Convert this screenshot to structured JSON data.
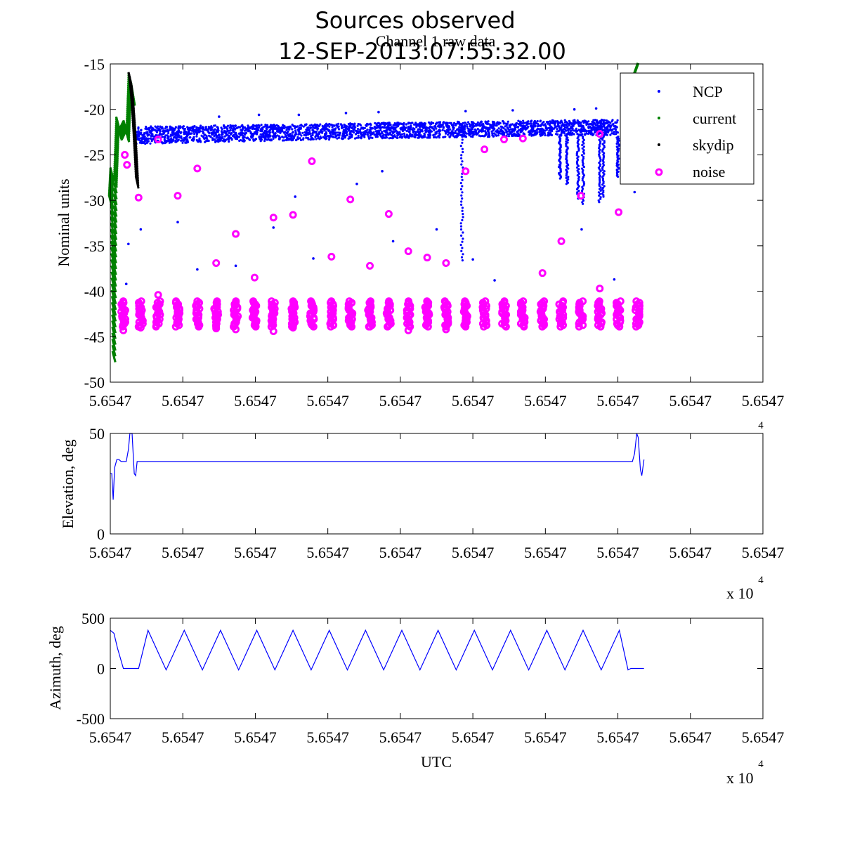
{
  "figure": {
    "title_line1": "Sources observed",
    "title_line2": "12-SEP-2013:07:55:32.00",
    "x_exponent": "x 10",
    "x_exponent_power": "4"
  },
  "chart_data": [
    {
      "type": "scatter",
      "title": "Channel 1 raw data",
      "xlabel": "",
      "ylabel": "Nominal units",
      "xlim": [
        0,
        9
      ],
      "ylim": [
        -50,
        -15
      ],
      "yticks": [
        -50,
        -45,
        -40,
        -35,
        -30,
        -25,
        -20,
        -15
      ],
      "xtick_labels": [
        "5.6547",
        "5.6547",
        "5.6547",
        "5.6547",
        "5.6547",
        "5.6547",
        "5.6547",
        "5.6547",
        "5.6547",
        "5.6547"
      ],
      "ytick_labels": [
        "-50",
        "-45",
        "-40",
        "-35",
        "-30",
        "-25",
        "-20",
        "-15"
      ],
      "legend": {
        "location": "top-right",
        "entries": [
          {
            "label": "NCP",
            "color": "#0000ff",
            "marker": "dot"
          },
          {
            "label": "current",
            "color": "#008000",
            "marker": "dot"
          },
          {
            "label": "skydip",
            "color": "#000000",
            "marker": "dot"
          },
          {
            "label": "noise",
            "color": "#ff00ff",
            "marker": "circle"
          }
        ]
      },
      "series": [
        {
          "name": "NCP",
          "color": "#0000ff",
          "x_range": [
            0.33,
            7.0
          ],
          "band_low": [
            -23.8,
            -23.5,
            -23.2,
            -23.0,
            -22.8
          ],
          "band_high": [
            -21.9,
            -21.7,
            -21.5,
            -21.3,
            -21.1
          ],
          "outliers": [
            {
              "x": 0.25,
              "y": -34.8
            },
            {
              "x": 0.22,
              "y": -39.2
            },
            {
              "x": 0.42,
              "y": -33.2
            },
            {
              "x": 0.93,
              "y": -32.4
            },
            {
              "x": 1.2,
              "y": -37.6
            },
            {
              "x": 1.73,
              "y": -37.2
            },
            {
              "x": 2.25,
              "y": -33.0
            },
            {
              "x": 2.55,
              "y": -29.6
            },
            {
              "x": 2.8,
              "y": -36.4
            },
            {
              "x": 3.4,
              "y": -28.2
            },
            {
              "x": 3.75,
              "y": -26.8
            },
            {
              "x": 3.9,
              "y": -34.5
            },
            {
              "x": 4.5,
              "y": -33.2
            },
            {
              "x": 5.0,
              "y": -36.5
            },
            {
              "x": 5.3,
              "y": -38.8
            },
            {
              "x": 6.5,
              "y": -33.2
            },
            {
              "x": 6.95,
              "y": -38.7
            },
            {
              "x": 7.23,
              "y": -29.1
            },
            {
              "x": 1.5,
              "y": -20.8
            },
            {
              "x": 2.05,
              "y": -20.6
            },
            {
              "x": 2.6,
              "y": -20.6
            },
            {
              "x": 3.25,
              "y": -20.4
            },
            {
              "x": 3.7,
              "y": -20.3
            },
            {
              "x": 4.9,
              "y": -20.2
            },
            {
              "x": 5.55,
              "y": -20.1
            },
            {
              "x": 6.4,
              "y": -20.0
            },
            {
              "x": 6.7,
              "y": -19.9
            }
          ],
          "dips": [
            {
              "x": 4.85,
              "y_min": -36.6
            },
            {
              "x": 6.2,
              "y_min": -27.6
            },
            {
              "x": 6.3,
              "y_min": -28.2
            },
            {
              "x": 6.45,
              "y_min": -29.8
            },
            {
              "x": 6.52,
              "y_min": -30.4
            },
            {
              "x": 6.75,
              "y_min": -30.2
            },
            {
              "x": 6.8,
              "y_min": -29.6
            },
            {
              "x": 7.0,
              "y_min": -27.4
            }
          ]
        },
        {
          "name": "current",
          "color": "#008000",
          "description_points": [
            {
              "x": 0.0,
              "y": -30
            },
            {
              "x": 0.02,
              "y": -27
            },
            {
              "x": 0.05,
              "y": -47.2
            },
            {
              "x": 0.07,
              "y": -28
            },
            {
              "x": 0.1,
              "y": -21.4
            },
            {
              "x": 0.14,
              "y": -22.8
            },
            {
              "x": 0.2,
              "y": -21.8
            },
            {
              "x": 0.24,
              "y": -23.0
            },
            {
              "x": 0.27,
              "y": -16.6
            },
            {
              "x": 0.32,
              "y": -19.0
            },
            {
              "x": 7.25,
              "y": -15.0
            }
          ]
        },
        {
          "name": "skydip",
          "color": "#000000",
          "x_range": [
            0.27,
            0.37
          ],
          "y_range": [
            -28.0,
            -16.6
          ]
        },
        {
          "name": "noise",
          "color": "#ff00ff",
          "cluster_y_center": -42.5,
          "cluster_half_height": 1.4,
          "clusters_x": [
            0.18,
            0.42,
            0.66,
            0.93,
            1.2,
            1.46,
            1.73,
            1.99,
            2.25,
            2.52,
            2.78,
            3.05,
            3.31,
            3.58,
            3.84,
            4.11,
            4.37,
            4.63,
            4.9,
            5.16,
            5.43,
            5.69,
            5.96,
            6.22,
            6.49,
            6.75,
            7.01,
            7.27
          ],
          "scatter": [
            {
              "x": 0.2,
              "y": -25.0
            },
            {
              "x": 0.23,
              "y": -26.1
            },
            {
              "x": 0.39,
              "y": -29.7
            },
            {
              "x": 0.66,
              "y": -23.3
            },
            {
              "x": 0.66,
              "y": -40.4
            },
            {
              "x": 0.93,
              "y": -29.5
            },
            {
              "x": 1.2,
              "y": -26.5
            },
            {
              "x": 1.46,
              "y": -36.9
            },
            {
              "x": 1.73,
              "y": -33.7
            },
            {
              "x": 1.99,
              "y": -38.5
            },
            {
              "x": 2.25,
              "y": -31.9
            },
            {
              "x": 2.52,
              "y": -31.6
            },
            {
              "x": 2.78,
              "y": -25.7
            },
            {
              "x": 3.05,
              "y": -36.2
            },
            {
              "x": 3.31,
              "y": -29.9
            },
            {
              "x": 3.58,
              "y": -37.2
            },
            {
              "x": 3.84,
              "y": -31.5
            },
            {
              "x": 4.11,
              "y": -35.6
            },
            {
              "x": 4.37,
              "y": -36.3
            },
            {
              "x": 4.63,
              "y": -36.9
            },
            {
              "x": 4.9,
              "y": -26.8
            },
            {
              "x": 5.16,
              "y": -24.4
            },
            {
              "x": 5.43,
              "y": -23.3
            },
            {
              "x": 5.69,
              "y": -23.2
            },
            {
              "x": 5.96,
              "y": -38.0
            },
            {
              "x": 6.22,
              "y": -34.5
            },
            {
              "x": 6.49,
              "y": -29.5
            },
            {
              "x": 6.75,
              "y": -39.7
            },
            {
              "x": 6.75,
              "y": -22.7
            },
            {
              "x": 7.01,
              "y": -31.3
            },
            {
              "x": 0.18,
              "y": -44.3
            },
            {
              "x": 0.42,
              "y": -44.0
            },
            {
              "x": 1.46,
              "y": -44.1
            },
            {
              "x": 1.73,
              "y": -44.2
            },
            {
              "x": 2.25,
              "y": -44.4
            },
            {
              "x": 2.52,
              "y": -44.0
            },
            {
              "x": 3.58,
              "y": -43.9
            },
            {
              "x": 4.11,
              "y": -44.3
            },
            {
              "x": 4.37,
              "y": -43.5
            },
            {
              "x": 4.63,
              "y": -44.2
            }
          ]
        }
      ]
    },
    {
      "type": "line",
      "title": "",
      "xlabel": "",
      "ylabel": "Elevation, deg",
      "xlim": [
        0,
        9
      ],
      "ylim": [
        0,
        50
      ],
      "yticks": [
        0,
        50
      ],
      "ytick_labels": [
        "0",
        "50"
      ],
      "xtick_labels": [
        "5.6547",
        "5.6547",
        "5.6547",
        "5.6547",
        "5.6547",
        "5.6547",
        "5.6547",
        "5.6547",
        "5.6547",
        "5.6547"
      ],
      "series": [
        {
          "name": "Elevation",
          "color": "#0000ff",
          "x": [
            0.0,
            0.02,
            0.04,
            0.06,
            0.09,
            0.12,
            0.15,
            0.22,
            0.25,
            0.27,
            0.3,
            0.33,
            0.35,
            0.37,
            0.39,
            7.18,
            7.2,
            7.23,
            7.26,
            7.28,
            7.31,
            7.33,
            7.36
          ],
          "y": [
            30,
            30,
            17,
            33,
            37,
            37,
            36,
            36,
            42,
            50,
            50,
            30,
            29,
            36,
            36,
            36,
            36,
            40,
            50,
            48,
            32,
            29,
            37
          ]
        }
      ]
    },
    {
      "type": "line",
      "title": "",
      "xlabel": "UTC",
      "ylabel": "Azimuth, deg",
      "xlim": [
        0,
        9
      ],
      "ylim": [
        -500,
        500
      ],
      "yticks": [
        -500,
        0,
        500
      ],
      "ytick_labels": [
        "-500",
        "0",
        "500"
      ],
      "xtick_labels": [
        "5.6547",
        "5.6547",
        "5.6547",
        "5.6547",
        "5.6547",
        "5.6547",
        "5.6547",
        "5.6547",
        "5.6547",
        "5.6547"
      ],
      "series": [
        {
          "name": "Azimuth",
          "color": "#0000ff",
          "x_start": 0.0,
          "x_end": 7.36,
          "peak_value": 380,
          "trough_value": -15,
          "peaks_x": [
            0.0,
            0.52,
            1.02,
            1.52,
            2.02,
            2.52,
            3.02,
            3.52,
            4.02,
            4.52,
            5.02,
            5.52,
            6.02,
            6.52,
            7.02
          ],
          "troughs_x": [
            0.41,
            0.77,
            1.27,
            1.77,
            2.27,
            2.77,
            3.27,
            3.77,
            4.27,
            4.77,
            5.27,
            5.77,
            6.27,
            6.77,
            7.14
          ],
          "flat_segments": [
            {
              "x0": 0.18,
              "x1": 0.39,
              "y": 0
            },
            {
              "x0": 7.14,
              "x1": 7.36,
              "y": 0
            }
          ]
        }
      ]
    }
  ]
}
